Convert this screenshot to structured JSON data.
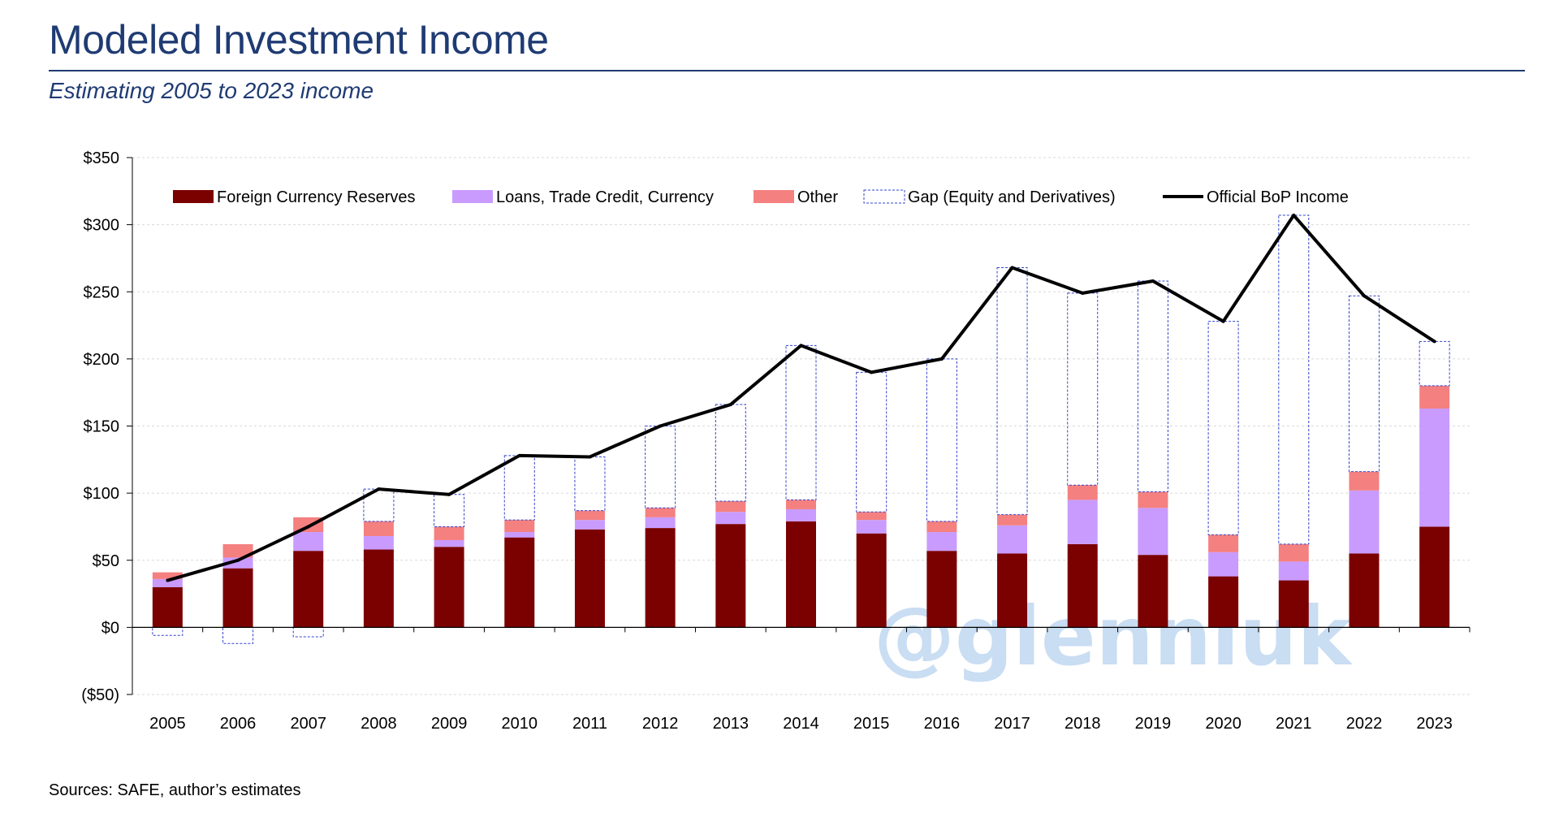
{
  "header": {
    "title": "Modeled Investment Income",
    "subtitle": "Estimating 2005 to 2023 income"
  },
  "footer": {
    "source": "Sources: SAFE, author’s estimates"
  },
  "watermark": "@glennluk",
  "colors": {
    "reserves": "#7b0000",
    "loans": "#c99bff",
    "other": "#f48080",
    "gap_border": "#3344cc",
    "line": "#000000",
    "watermark": "#c9ddf3",
    "title": "#1f3b73"
  },
  "chart_data": {
    "type": "bar",
    "stacked": true,
    "ylim": [
      -50,
      350
    ],
    "yticks": [
      -50,
      0,
      50,
      100,
      150,
      200,
      250,
      300,
      350
    ],
    "ytick_labels": [
      "($50)",
      "$0",
      "$50",
      "$100",
      "$150",
      "$200",
      "$250",
      "$300",
      "$350"
    ],
    "grid": true,
    "legend_position": "top",
    "categories": [
      "2005",
      "2006",
      "2007",
      "2008",
      "2009",
      "2010",
      "2011",
      "2012",
      "2013",
      "2014",
      "2015",
      "2016",
      "2017",
      "2018",
      "2019",
      "2020",
      "2021",
      "2022",
      "2023"
    ],
    "series": [
      {
        "name": "Foreign Currency Reserves",
        "kind": "bar",
        "values": [
          30,
          44,
          57,
          58,
          60,
          67,
          73,
          74,
          77,
          79,
          70,
          57,
          55,
          62,
          54,
          38,
          35,
          55,
          75
        ]
      },
      {
        "name": "Loans, Trade Credit, Currency",
        "kind": "bar",
        "values": [
          6,
          8,
          14,
          10,
          5,
          4,
          7,
          8,
          9,
          9,
          10,
          14,
          21,
          33,
          35,
          18,
          14,
          47,
          88
        ]
      },
      {
        "name": "Other",
        "kind": "bar",
        "values": [
          5,
          10,
          11,
          11,
          10,
          9,
          7,
          7,
          8,
          7,
          6,
          8,
          8,
          11,
          12,
          13,
          13,
          14,
          17
        ]
      },
      {
        "name": "Gap (Equity and Derivatives)",
        "kind": "gap",
        "values": [
          -6,
          -12,
          -7,
          24,
          24,
          48,
          40,
          61,
          72,
          115,
          104,
          121,
          184,
          143,
          157,
          159,
          245,
          131,
          33
        ]
      },
      {
        "name": "Official BoP Income",
        "kind": "line",
        "values": [
          35,
          50,
          75,
          103,
          99,
          128,
          127,
          150,
          166,
          210,
          190,
          200,
          268,
          249,
          258,
          228,
          307,
          247,
          213
        ]
      }
    ]
  }
}
